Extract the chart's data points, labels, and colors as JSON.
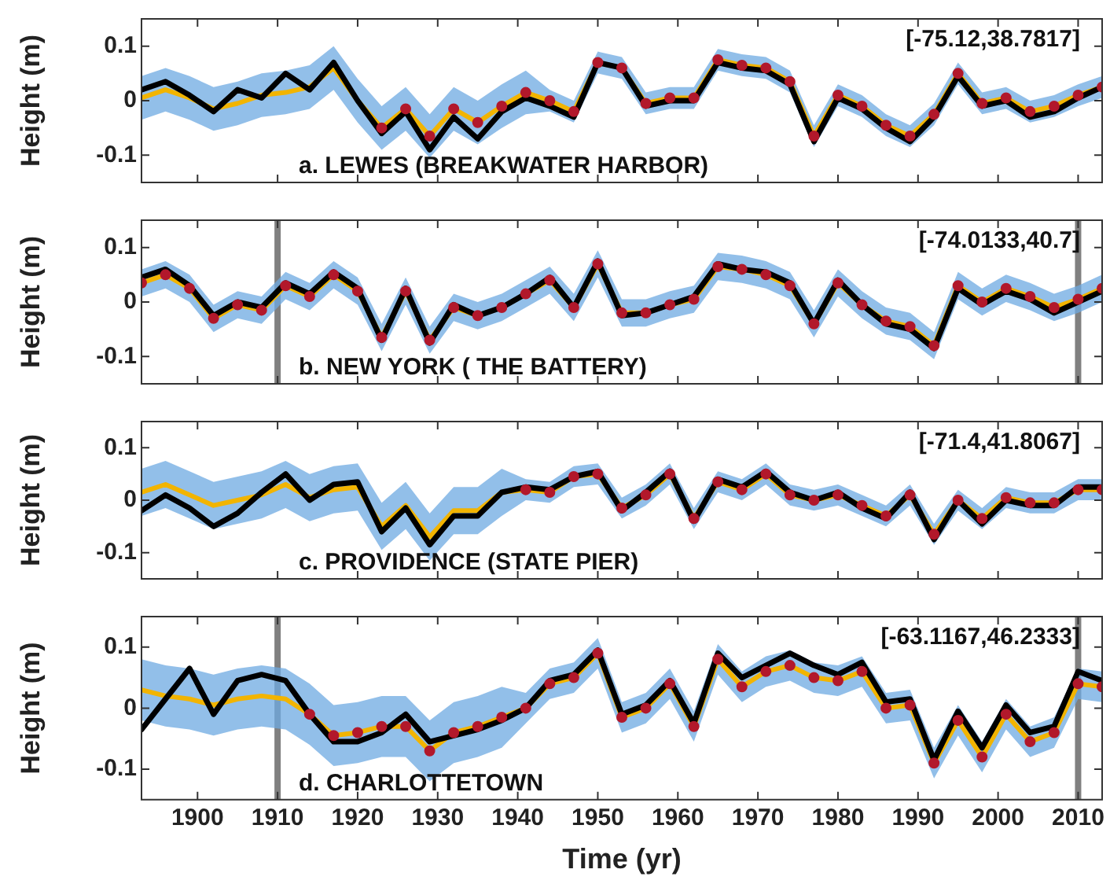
{
  "chart_data": [
    {
      "type": "line",
      "ylabel": "Height (m)",
      "annotations": [
        "a. LEWES (BREAKWATER HARBOR)",
        "[-75.12,38.7817]"
      ],
      "x": [
        1893,
        1896,
        1899,
        1902,
        1905,
        1908,
        1911,
        1914,
        1917,
        1920,
        1923,
        1926,
        1929,
        1932,
        1935,
        1938,
        1941,
        1944,
        1947,
        1950,
        1953,
        1956,
        1959,
        1962,
        1965,
        1968,
        1971,
        1974,
        1977,
        1980,
        1983,
        1986,
        1989,
        1992,
        1995,
        1998,
        2001,
        2004,
        2007,
        2010,
        2013
      ],
      "series": [
        {
          "color": "#f2b400",
          "values": [
            0.005,
            0.02,
            0.005,
            -0.015,
            -0.005,
            0.01,
            0.015,
            0.025,
            0.06,
            0.0,
            -0.05,
            -0.015,
            -0.065,
            -0.015,
            -0.04,
            -0.01,
            0.015,
            0,
            -0.02,
            0.07,
            0.06,
            -0.005,
            0.005,
            0.005,
            0.075,
            0.065,
            0.06,
            0.035,
            -0.065,
            0.01,
            -0.01,
            -0.045,
            -0.065,
            -0.025,
            0.05,
            -0.005,
            0.005,
            -0.02,
            -0.01,
            0.01,
            0.025
          ],
          "lower": [
            -0.035,
            -0.02,
            -0.035,
            -0.055,
            -0.045,
            -0.03,
            -0.025,
            -0.015,
            0.02,
            -0.04,
            -0.09,
            -0.055,
            -0.105,
            -0.055,
            -0.08,
            -0.05,
            -0.025,
            -0.02,
            -0.04,
            0.05,
            0.04,
            -0.025,
            -0.015,
            -0.015,
            0.055,
            0.045,
            0.04,
            0.015,
            -0.085,
            -0.01,
            -0.03,
            -0.065,
            -0.085,
            -0.045,
            0.03,
            -0.025,
            -0.015,
            -0.04,
            -0.03,
            -0.01,
            0.005
          ],
          "upper": [
            0.045,
            0.06,
            0.045,
            0.025,
            0.035,
            0.05,
            0.055,
            0.065,
            0.1,
            0.04,
            -0.01,
            0.025,
            -0.025,
            0.025,
            0,
            0.03,
            0.055,
            0.02,
            0,
            0.09,
            0.08,
            0.015,
            0.025,
            0.025,
            0.095,
            0.085,
            0.08,
            0.055,
            -0.045,
            0.03,
            0.01,
            -0.025,
            -0.045,
            -0.005,
            0.07,
            0.015,
            0.025,
            0,
            0.01,
            0.03,
            0.045
          ]
        },
        {
          "color": "#000000",
          "values": [
            0.02,
            0.035,
            0.01,
            -0.02,
            0.02,
            0.005,
            0.05,
            0.02,
            0.07,
            0.0,
            -0.06,
            -0.02,
            -0.09,
            -0.03,
            -0.07,
            -0.02,
            0.005,
            -0.01,
            -0.03,
            0.07,
            0.06,
            -0.01,
            0,
            0,
            0.07,
            0.06,
            0.055,
            0.03,
            -0.075,
            0.005,
            -0.015,
            -0.05,
            -0.075,
            -0.03,
            0.045,
            -0.01,
            0,
            -0.03,
            -0.02,
            0.005,
            0.025
          ]
        },
        {
          "type": "scatter",
          "marker": "circle",
          "color": "#b2182b",
          "values": [
            null,
            null,
            null,
            null,
            null,
            null,
            null,
            null,
            null,
            null,
            -0.05,
            -0.015,
            -0.065,
            -0.015,
            -0.04,
            -0.01,
            0.015,
            0,
            -0.02,
            0.07,
            0.06,
            -0.005,
            0.005,
            0.005,
            0.075,
            0.065,
            0.06,
            0.035,
            -0.065,
            0.01,
            -0.01,
            -0.045,
            -0.065,
            -0.025,
            0.05,
            -0.005,
            0.005,
            -0.02,
            -0.01,
            0.01,
            0.025
          ]
        }
      ],
      "xlim": [
        1893,
        2013
      ],
      "xticks": [
        1900,
        1910,
        1920,
        1930,
        1940,
        1950,
        1960,
        1970,
        1980,
        1990,
        2000,
        2010
      ],
      "ylim": [
        -0.15,
        0.15
      ],
      "yticks": [
        -0.1,
        0,
        0.1
      ],
      "tick_labels": "y",
      "legend": false,
      "grid": false
    },
    {
      "type": "line",
      "ylabel": "Height (m)",
      "annotations": [
        "b. NEW YORK ( THE BATTERY)",
        "[-74.0133,40.7]"
      ],
      "x": [
        1893,
        1896,
        1899,
        1902,
        1905,
        1908,
        1911,
        1914,
        1917,
        1920,
        1923,
        1926,
        1929,
        1932,
        1935,
        1938,
        1941,
        1944,
        1947,
        1950,
        1953,
        1956,
        1959,
        1962,
        1965,
        1968,
        1971,
        1974,
        1977,
        1980,
        1983,
        1986,
        1989,
        1992,
        1995,
        1998,
        2001,
        2004,
        2007,
        2010,
        2013
      ],
      "series": [
        {
          "color": "#f2b400",
          "values": [
            0.035,
            0.05,
            0.025,
            -0.03,
            -0.005,
            -0.015,
            0.03,
            0.01,
            0.05,
            0.02,
            -0.065,
            0.02,
            -0.07,
            -0.01,
            -0.025,
            -0.01,
            0.015,
            0.04,
            -0.01,
            0.07,
            -0.02,
            -0.02,
            -0.005,
            0.005,
            0.065,
            0.06,
            0.05,
            0.03,
            -0.04,
            0.035,
            -0.005,
            -0.035,
            -0.045,
            -0.08,
            0.03,
            0,
            0.025,
            0.01,
            -0.01,
            0.005,
            0.025
          ],
          "lower": [
            0.01,
            0.025,
            0,
            -0.055,
            -0.03,
            -0.04,
            0.005,
            -0.015,
            0.025,
            -0.005,
            -0.09,
            -0.005,
            -0.095,
            -0.035,
            -0.05,
            -0.035,
            -0.01,
            0.015,
            -0.035,
            0.045,
            -0.045,
            -0.045,
            -0.03,
            -0.02,
            0.04,
            0.035,
            0.025,
            0.005,
            -0.065,
            0.01,
            -0.03,
            -0.06,
            -0.07,
            -0.105,
            0.005,
            -0.025,
            0,
            -0.015,
            -0.035,
            -0.02,
            0
          ],
          "upper": [
            0.06,
            0.075,
            0.05,
            -0.005,
            0.02,
            0.01,
            0.055,
            0.035,
            0.075,
            0.045,
            -0.04,
            0.045,
            -0.045,
            0.015,
            0,
            0.015,
            0.04,
            0.065,
            0.015,
            0.095,
            0.005,
            0.005,
            0.02,
            0.03,
            0.09,
            0.085,
            0.075,
            0.055,
            -0.015,
            0.06,
            0.02,
            -0.01,
            -0.02,
            -0.055,
            0.055,
            0.025,
            0.05,
            0.035,
            0.015,
            0.03,
            0.05
          ]
        },
        {
          "color": "#000000",
          "values": [
            0.045,
            0.06,
            0.03,
            -0.025,
            0,
            -0.01,
            0.035,
            0.015,
            0.055,
            0.025,
            -0.07,
            0.025,
            -0.075,
            -0.005,
            -0.025,
            -0.01,
            0.015,
            0.045,
            -0.01,
            0.075,
            -0.025,
            -0.02,
            -0.005,
            0.01,
            0.07,
            0.06,
            0.055,
            0.035,
            -0.04,
            0.04,
            -0.005,
            -0.04,
            -0.05,
            -0.085,
            0.025,
            -0.005,
            0.02,
            0.005,
            -0.02,
            0,
            0.02
          ]
        },
        {
          "type": "scatter",
          "marker": "circle",
          "color": "#b2182b",
          "values": [
            0.035,
            0.05,
            0.025,
            -0.03,
            -0.005,
            -0.015,
            0.03,
            0.01,
            0.05,
            0.02,
            -0.065,
            0.02,
            -0.07,
            -0.01,
            -0.025,
            -0.01,
            0.015,
            0.04,
            -0.01,
            0.07,
            -0.02,
            -0.02,
            -0.005,
            0.005,
            0.065,
            0.06,
            0.05,
            0.03,
            -0.04,
            0.035,
            -0.005,
            -0.035,
            -0.045,
            -0.08,
            0.03,
            0,
            0.025,
            0.01,
            -0.01,
            0.005,
            0.025
          ]
        }
      ],
      "ref_lines": [
        {
          "axis": "x",
          "value": 1910,
          "color": "#808080"
        },
        {
          "axis": "x",
          "value": 2010,
          "color": "#808080"
        }
      ],
      "xlim": [
        1893,
        2013
      ],
      "xticks": [
        1900,
        1910,
        1920,
        1930,
        1940,
        1950,
        1960,
        1970,
        1980,
        1990,
        2000,
        2010
      ],
      "ylim": [
        -0.15,
        0.15
      ],
      "yticks": [
        -0.1,
        0,
        0.1
      ],
      "tick_labels": "y",
      "legend": false,
      "grid": false
    },
    {
      "type": "line",
      "ylabel": "Height (m)",
      "annotations": [
        "c. PROVIDENCE (STATE PIER)",
        "[-71.4,41.8067]"
      ],
      "x": [
        1893,
        1896,
        1899,
        1902,
        1905,
        1908,
        1911,
        1914,
        1917,
        1920,
        1923,
        1926,
        1929,
        1932,
        1935,
        1938,
        1941,
        1944,
        1947,
        1950,
        1953,
        1956,
        1959,
        1962,
        1965,
        1968,
        1971,
        1974,
        1977,
        1980,
        1983,
        1986,
        1989,
        1992,
        1995,
        1998,
        2001,
        2004,
        2007,
        2010,
        2013
      ],
      "series": [
        {
          "color": "#f2b400",
          "values": [
            0.015,
            0.03,
            0.01,
            -0.01,
            0,
            0.01,
            0.03,
            0.005,
            0.02,
            0.025,
            -0.05,
            -0.01,
            -0.07,
            -0.02,
            -0.02,
            0.015,
            0.02,
            0.015,
            0.045,
            0.05,
            -0.015,
            0.01,
            0.05,
            -0.035,
            0.035,
            0.02,
            0.05,
            0.01,
            0,
            0.01,
            -0.01,
            -0.03,
            0.01,
            -0.065,
            0,
            -0.035,
            0.005,
            -0.005,
            -0.005,
            0.02,
            0.02
          ],
          "lower": [
            -0.03,
            -0.015,
            -0.035,
            -0.055,
            -0.045,
            -0.035,
            -0.015,
            -0.04,
            -0.025,
            -0.02,
            -0.095,
            -0.055,
            -0.115,
            -0.065,
            -0.065,
            -0.03,
            0,
            -0.005,
            0.025,
            0.03,
            -0.035,
            -0.01,
            0.03,
            -0.055,
            0.015,
            0,
            0.03,
            -0.01,
            -0.02,
            -0.01,
            -0.03,
            -0.05,
            -0.01,
            -0.085,
            -0.02,
            -0.055,
            -0.015,
            -0.025,
            -0.025,
            0,
            0
          ],
          "upper": [
            0.06,
            0.075,
            0.055,
            0.035,
            0.045,
            0.055,
            0.075,
            0.05,
            0.065,
            0.07,
            -0.005,
            0.035,
            -0.025,
            0.025,
            0.025,
            0.06,
            0.04,
            0.035,
            0.065,
            0.07,
            0.005,
            0.03,
            0.07,
            -0.015,
            0.055,
            0.04,
            0.07,
            0.03,
            0.02,
            0.03,
            0.01,
            -0.01,
            0.03,
            -0.045,
            0.02,
            -0.015,
            0.025,
            0.015,
            0.015,
            0.04,
            0.04
          ]
        },
        {
          "color": "#000000",
          "values": [
            -0.02,
            0.01,
            -0.015,
            -0.05,
            -0.025,
            0.015,
            0.05,
            0,
            0.03,
            0.035,
            -0.06,
            -0.015,
            -0.085,
            -0.03,
            -0.03,
            0.015,
            0.025,
            0.02,
            0.045,
            0.055,
            -0.02,
            0.015,
            0.055,
            -0.04,
            0.04,
            0.025,
            0.055,
            0.015,
            0,
            0.015,
            -0.015,
            -0.035,
            0.015,
            -0.075,
            0,
            -0.045,
            0,
            -0.01,
            -0.01,
            0.025,
            0.025
          ]
        },
        {
          "type": "scatter",
          "marker": "circle",
          "color": "#b2182b",
          "values": [
            null,
            null,
            null,
            null,
            null,
            null,
            null,
            null,
            null,
            null,
            null,
            null,
            null,
            null,
            null,
            null,
            0.02,
            0.015,
            0.045,
            0.05,
            -0.015,
            0.01,
            0.05,
            -0.035,
            0.035,
            0.02,
            0.05,
            0.01,
            0,
            0.01,
            -0.01,
            -0.03,
            0.01,
            -0.065,
            0,
            -0.035,
            0.005,
            -0.005,
            -0.005,
            0.02,
            0.02
          ]
        }
      ],
      "xlim": [
        1893,
        2013
      ],
      "xticks": [
        1900,
        1910,
        1920,
        1930,
        1940,
        1950,
        1960,
        1970,
        1980,
        1990,
        2000,
        2010
      ],
      "ylim": [
        -0.15,
        0.15
      ],
      "yticks": [
        -0.1,
        0,
        0.1
      ],
      "tick_labels": "y",
      "legend": false,
      "grid": false
    },
    {
      "type": "line",
      "ylabel": "Height (m)",
      "xlabel": "Time (yr)",
      "annotations": [
        "d. CHARLOTTETOWN",
        "[-63.1167,46.2333]"
      ],
      "x": [
        1893,
        1896,
        1899,
        1902,
        1905,
        1908,
        1911,
        1914,
        1917,
        1920,
        1923,
        1926,
        1929,
        1932,
        1935,
        1938,
        1941,
        1944,
        1947,
        1950,
        1953,
        1956,
        1959,
        1962,
        1965,
        1968,
        1971,
        1974,
        1977,
        1980,
        1983,
        1986,
        1989,
        1992,
        1995,
        1998,
        2001,
        2004,
        2007,
        2010,
        2013
      ],
      "series": [
        {
          "color": "#f2b400",
          "values": [
            0.03,
            0.02,
            0.015,
            0.005,
            0.015,
            0.02,
            0.015,
            -0.01,
            -0.045,
            -0.04,
            -0.03,
            -0.03,
            -0.07,
            -0.04,
            -0.03,
            -0.015,
            0,
            0.04,
            0.05,
            0.09,
            -0.015,
            0,
            0.04,
            -0.03,
            0.08,
            0.035,
            0.06,
            0.07,
            0.05,
            0.045,
            0.06,
            0,
            0.005,
            -0.09,
            -0.02,
            -0.08,
            -0.01,
            -0.055,
            -0.04,
            0.04,
            0.035
          ],
          "lower": [
            -0.02,
            -0.03,
            -0.035,
            -0.045,
            -0.035,
            -0.03,
            -0.035,
            -0.06,
            -0.095,
            -0.09,
            -0.08,
            -0.08,
            -0.12,
            -0.09,
            -0.08,
            -0.065,
            -0.025,
            0.015,
            0.025,
            0.065,
            -0.04,
            -0.025,
            0.015,
            -0.055,
            0.055,
            0.01,
            0.035,
            0.045,
            0.025,
            0.02,
            0.035,
            -0.025,
            -0.02,
            -0.115,
            -0.045,
            -0.105,
            -0.035,
            -0.08,
            -0.065,
            0.015,
            0.01
          ],
          "upper": [
            0.08,
            0.07,
            0.065,
            0.055,
            0.065,
            0.07,
            0.065,
            0.04,
            0.005,
            0.01,
            0.02,
            0.02,
            -0.02,
            0.01,
            0.02,
            0.035,
            0.025,
            0.065,
            0.075,
            0.115,
            0.01,
            0.025,
            0.065,
            -0.005,
            0.105,
            0.06,
            0.085,
            0.095,
            0.075,
            0.07,
            0.085,
            0.025,
            0.03,
            -0.065,
            0.005,
            -0.055,
            0.015,
            -0.03,
            -0.015,
            0.065,
            0.06
          ]
        },
        {
          "color": "#000000",
          "values": [
            -0.035,
            0.015,
            0.065,
            -0.01,
            0.045,
            0.055,
            0.045,
            -0.01,
            -0.055,
            -0.055,
            -0.04,
            -0.01,
            -0.055,
            -0.045,
            -0.035,
            -0.02,
            0,
            0.045,
            0.055,
            0.095,
            -0.01,
            0.005,
            0.045,
            -0.025,
            0.09,
            0.05,
            0.07,
            0.09,
            0.07,
            0.055,
            0.075,
            0.01,
            0.015,
            -0.085,
            -0.005,
            -0.065,
            0.005,
            -0.04,
            -0.03,
            0.06,
            0.045
          ]
        },
        {
          "type": "scatter",
          "marker": "circle",
          "color": "#b2182b",
          "values": [
            null,
            null,
            null,
            null,
            null,
            null,
            null,
            -0.01,
            -0.045,
            -0.04,
            -0.03,
            -0.03,
            -0.07,
            -0.04,
            -0.03,
            -0.015,
            0,
            0.04,
            0.05,
            0.09,
            -0.015,
            0,
            0.04,
            -0.03,
            0.08,
            0.035,
            0.06,
            0.07,
            0.05,
            0.045,
            0.06,
            0,
            0.005,
            -0.09,
            -0.02,
            -0.08,
            -0.01,
            -0.055,
            -0.04,
            0.04,
            0.035
          ]
        }
      ],
      "ref_lines": [
        {
          "axis": "x",
          "value": 1910,
          "color": "#808080"
        },
        {
          "axis": "x",
          "value": 2010,
          "color": "#808080"
        }
      ],
      "xlim": [
        1893,
        2013
      ],
      "xticks": [
        1900,
        1910,
        1920,
        1930,
        1940,
        1950,
        1960,
        1970,
        1980,
        1990,
        2000,
        2010
      ],
      "ylim": [
        -0.15,
        0.15
      ],
      "yticks": [
        -0.1,
        0,
        0.1
      ],
      "legend": false,
      "grid": false
    }
  ]
}
